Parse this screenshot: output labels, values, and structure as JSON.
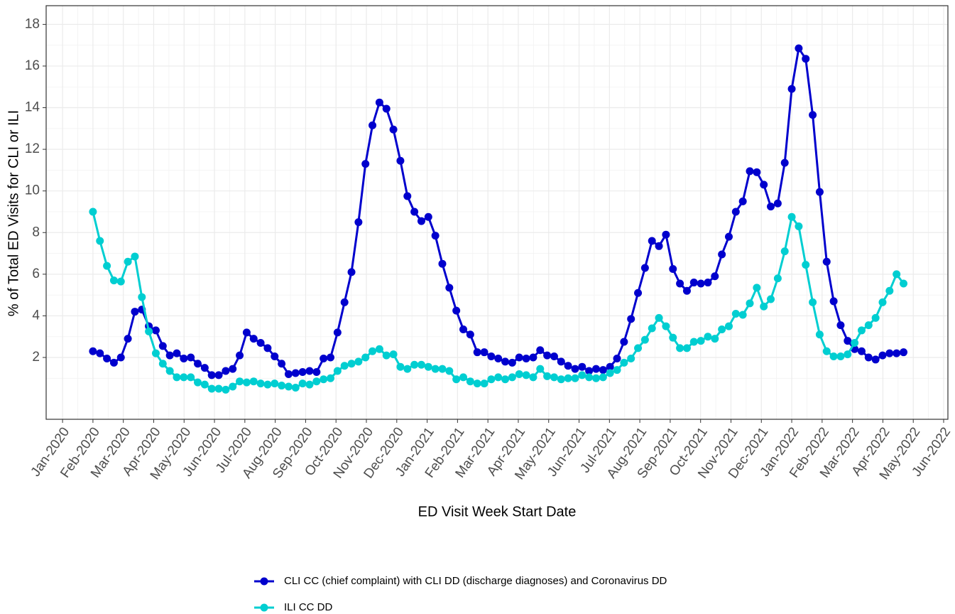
{
  "chart_data": {
    "type": "line",
    "x_label": "ED Visit Week Start Date",
    "y_label": "% of Total ED Visits for CLI or ILI",
    "x": [
      1,
      1.23,
      1.46,
      1.69,
      1.92,
      2.15,
      2.38,
      2.61,
      2.84,
      3.07,
      3.3,
      3.53,
      3.76,
      3.99,
      4.22,
      4.45,
      4.68,
      4.91,
      5.14,
      5.37,
      5.6,
      5.83,
      6.06,
      6.29,
      6.52,
      6.75,
      6.98,
      7.21,
      7.44,
      7.67,
      7.9,
      8.13,
      8.36,
      8.59,
      8.82,
      9.05,
      9.28,
      9.51,
      9.74,
      9.97,
      10.2,
      10.43,
      10.66,
      10.89,
      11.12,
      11.35,
      11.58,
      11.81,
      12.04,
      12.27,
      12.5,
      12.73,
      12.96,
      13.19,
      13.42,
      13.65,
      13.88,
      14.11,
      14.34,
      14.57,
      14.8,
      15.03,
      15.26,
      15.49,
      15.72,
      15.95,
      16.18,
      16.41,
      16.64,
      16.87,
      17.1,
      17.33,
      17.56,
      17.79,
      18.02,
      18.25,
      18.48,
      18.71,
      18.94,
      19.17,
      19.4,
      19.63,
      19.86,
      20.09,
      20.32,
      20.55,
      20.78,
      21.01,
      21.24,
      21.47,
      21.7,
      21.93,
      22.16,
      22.39,
      22.62,
      22.85,
      23.08,
      23.31,
      23.54,
      23.77,
      24.0,
      24.23,
      24.46,
      24.69,
      24.92,
      25.15,
      25.38,
      25.61,
      25.84,
      26.07,
      26.3,
      26.53,
      26.76,
      26.99,
      27.22,
      27.45,
      27.68
    ],
    "series": [
      {
        "name": "CLI CC (chief complaint) with CLI DD (discharge diagnoses) and Coronavirus DD",
        "color": "#0000cd",
        "values": [
          2.3,
          2.2,
          1.95,
          1.75,
          2.0,
          2.9,
          4.2,
          4.3,
          3.5,
          3.3,
          2.55,
          2.1,
          2.2,
          1.95,
          2.0,
          1.7,
          1.5,
          1.15,
          1.15,
          1.35,
          1.45,
          2.1,
          3.2,
          2.9,
          2.7,
          2.45,
          2.05,
          1.7,
          1.2,
          1.25,
          1.3,
          1.35,
          1.3,
          1.95,
          2.0,
          3.2,
          4.65,
          6.1,
          8.5,
          11.3,
          13.15,
          14.25,
          13.95,
          12.95,
          11.45,
          9.75,
          9.0,
          8.55,
          8.75,
          7.85,
          6.5,
          5.35,
          4.25,
          3.35,
          3.1,
          2.25,
          2.25,
          2.05,
          1.95,
          1.8,
          1.75,
          2.0,
          1.95,
          2.0,
          2.35,
          2.1,
          2.05,
          1.8,
          1.6,
          1.45,
          1.55,
          1.35,
          1.45,
          1.4,
          1.55,
          1.95,
          2.75,
          3.85,
          5.1,
          6.3,
          7.6,
          7.35,
          7.9,
          6.25,
          5.55,
          5.2,
          5.6,
          5.55,
          5.6,
          5.9,
          6.95,
          7.8,
          9.0,
          9.5,
          10.95,
          10.9,
          10.3,
          9.25,
          9.4,
          11.35,
          14.9,
          16.85,
          16.35,
          13.65,
          9.95,
          6.6,
          4.7,
          3.55,
          2.8,
          2.4,
          2.3,
          2.0,
          1.9,
          2.1,
          2.2,
          2.2,
          2.25
        ]
      },
      {
        "name": "ILI CC DD",
        "color": "#00ced1",
        "values": [
          9.0,
          7.6,
          6.4,
          5.7,
          5.65,
          6.6,
          6.85,
          4.9,
          3.25,
          2.2,
          1.7,
          1.35,
          1.05,
          1.05,
          1.05,
          0.8,
          0.7,
          0.5,
          0.5,
          0.45,
          0.6,
          0.85,
          0.8,
          0.85,
          0.75,
          0.7,
          0.75,
          0.65,
          0.6,
          0.55,
          0.75,
          0.7,
          0.85,
          0.95,
          1.0,
          1.35,
          1.6,
          1.7,
          1.8,
          2.0,
          2.3,
          2.4,
          2.1,
          2.15,
          1.55,
          1.45,
          1.65,
          1.65,
          1.55,
          1.45,
          1.45,
          1.35,
          0.95,
          1.05,
          0.85,
          0.75,
          0.75,
          0.95,
          1.05,
          0.95,
          1.05,
          1.2,
          1.15,
          1.05,
          1.45,
          1.1,
          1.05,
          0.95,
          1.0,
          1.0,
          1.15,
          1.05,
          1.0,
          1.05,
          1.25,
          1.4,
          1.75,
          1.95,
          2.45,
          2.85,
          3.4,
          3.9,
          3.5,
          2.95,
          2.45,
          2.45,
          2.75,
          2.8,
          3.0,
          2.9,
          3.35,
          3.5,
          4.1,
          4.05,
          4.6,
          5.35,
          4.45,
          4.8,
          5.8,
          7.1,
          8.75,
          8.3,
          6.45,
          4.65,
          3.1,
          2.3,
          2.05,
          2.05,
          2.15,
          2.7,
          3.3,
          3.55,
          3.9,
          4.65,
          5.2,
          6.0,
          5.55
        ]
      }
    ],
    "xlim": [
      -0.54,
      29.14
    ],
    "xticks": [
      {
        "value": 0,
        "label": "Jan-2020"
      },
      {
        "value": 1,
        "label": "Feb-2020"
      },
      {
        "value": 2,
        "label": "Mar-2020"
      },
      {
        "value": 3,
        "label": "Apr-2020"
      },
      {
        "value": 4,
        "label": "May-2020"
      },
      {
        "value": 5,
        "label": "Jun-2020"
      },
      {
        "value": 6,
        "label": "Jul-2020"
      },
      {
        "value": 7,
        "label": "Aug-2020"
      },
      {
        "value": 8,
        "label": "Sep-2020"
      },
      {
        "value": 9,
        "label": "Oct-2020"
      },
      {
        "value": 10,
        "label": "Nov-2020"
      },
      {
        "value": 11,
        "label": "Dec-2020"
      },
      {
        "value": 12,
        "label": "Jan-2021"
      },
      {
        "value": 13,
        "label": "Feb-2021"
      },
      {
        "value": 14,
        "label": "Mar-2021"
      },
      {
        "value": 15,
        "label": "Apr-2021"
      },
      {
        "value": 16,
        "label": "May-2021"
      },
      {
        "value": 17,
        "label": "Jun-2021"
      },
      {
        "value": 18,
        "label": "Jul-2021"
      },
      {
        "value": 19,
        "label": "Aug-2021"
      },
      {
        "value": 20,
        "label": "Sep-2021"
      },
      {
        "value": 21,
        "label": "Oct-2021"
      },
      {
        "value": 22,
        "label": "Nov-2021"
      },
      {
        "value": 23,
        "label": "Dec-2021"
      },
      {
        "value": 24,
        "label": "Jan-2022"
      },
      {
        "value": 25,
        "label": "Feb-2022"
      },
      {
        "value": 26,
        "label": "Mar-2022"
      },
      {
        "value": 27,
        "label": "Apr-2022"
      },
      {
        "value": 28,
        "label": "May-2022"
      },
      {
        "value": 29,
        "label": "Jun-2022"
      }
    ],
    "ylim": [
      -0.97,
      18.9
    ],
    "yticks": [
      2,
      4,
      6,
      8,
      10,
      12,
      14,
      16,
      18
    ],
    "grid": true,
    "legend": "bottom"
  }
}
